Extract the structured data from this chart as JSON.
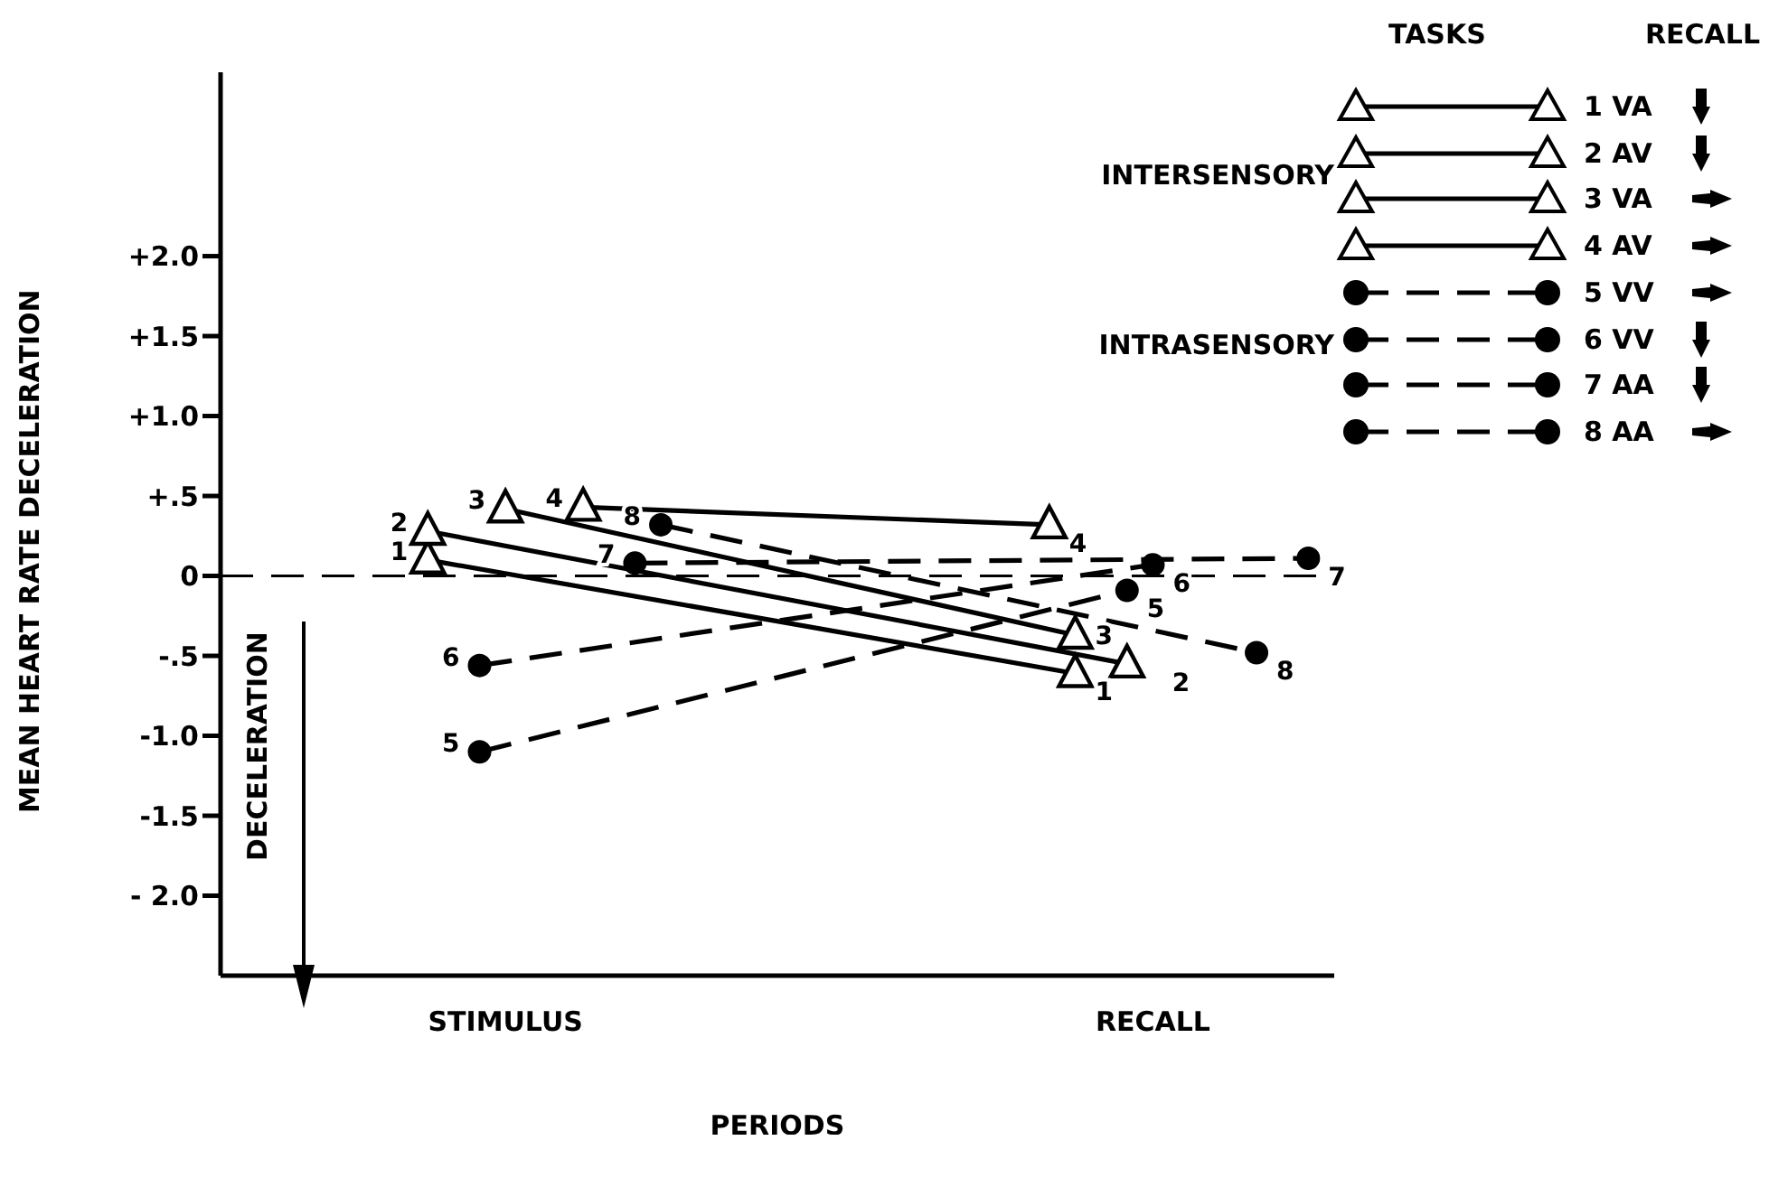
{
  "chart_data": {
    "type": "line",
    "xlabel": "PERIODS",
    "ylabel": "MEAN HEART RATE DECELERATION",
    "legend_title": "TASKS",
    "categories": [
      null,
      null,
      null,
      null,
      null,
      null,
      null,
      null,
      null,
      null,
      null,
      "STIMULUS",
      null,
      null,
      null,
      null,
      null,
      null,
      null,
      null,
      null,
      null,
      null,
      null,
      null,
      null,
      null,
      null,
      null,
      null,
      null,
      null,
      null,
      null,
      null,
      null,
      "RECALL",
      null,
      null,
      null,
      null,
      null,
      null,
      null
    ],
    "ylim": [
      -2.5,
      3.15
    ],
    "yticks": [
      {
        "value": -2,
        "label": "- 2.0"
      },
      {
        "value": -1.5,
        "label": "-1.5"
      },
      {
        "value": -1,
        "label": "-1.0"
      },
      {
        "value": -0.5,
        "label": "-.5"
      },
      {
        "value": 0,
        "label": "0"
      },
      {
        "value": 0.5,
        "label": "+.5"
      },
      {
        "value": 1,
        "label": "+1.0"
      },
      {
        "value": 1.5,
        "label": "+1.5"
      },
      {
        "value": 2,
        "label": "+2.0"
      }
    ],
    "grid": false,
    "legend": "top right",
    "series": [
      {
        "name": "1 VA",
        "color": "#000000",
        "marker": "triangle",
        "line_style": "solid",
        "values": [
          null,
          null,
          null,
          null,
          null,
          null,
          null,
          null,
          0.1,
          null,
          null,
          null,
          null,
          null,
          null,
          null,
          null,
          null,
          null,
          null,
          null,
          null,
          null,
          null,
          null,
          null,
          null,
          null,
          null,
          null,
          null,
          null,
          null,
          -0.61,
          null,
          null,
          null,
          null,
          null,
          null,
          null,
          null,
          null,
          null
        ]
      },
      {
        "name": "2 AV",
        "color": "#000000",
        "marker": "triangle",
        "line_style": "solid",
        "values": [
          null,
          null,
          null,
          null,
          null,
          null,
          null,
          null,
          0.28,
          null,
          null,
          null,
          null,
          null,
          null,
          null,
          null,
          null,
          null,
          null,
          null,
          null,
          null,
          null,
          null,
          null,
          null,
          null,
          null,
          null,
          null,
          null,
          null,
          null,
          null,
          -0.55,
          null,
          null,
          null,
          null,
          null,
          null,
          null,
          null
        ]
      },
      {
        "name": "3 VA",
        "color": "#000000",
        "marker": "triangle",
        "line_style": "solid",
        "values": [
          null,
          null,
          null,
          null,
          null,
          null,
          null,
          null,
          null,
          null,
          null,
          0.42,
          null,
          null,
          null,
          null,
          null,
          null,
          null,
          null,
          null,
          null,
          null,
          null,
          null,
          null,
          null,
          null,
          null,
          null,
          null,
          null,
          null,
          -0.37,
          null,
          null,
          null,
          null,
          null,
          null,
          null,
          null,
          null,
          null
        ]
      },
      {
        "name": "4 AV",
        "color": "#000000",
        "marker": "triangle",
        "line_style": "solid",
        "values": [
          null,
          null,
          null,
          null,
          null,
          null,
          null,
          null,
          null,
          null,
          null,
          null,
          null,
          null,
          0.43,
          null,
          null,
          null,
          null,
          null,
          null,
          null,
          null,
          null,
          null,
          null,
          null,
          null,
          null,
          null,
          null,
          null,
          0.32,
          null,
          null,
          null,
          null,
          null,
          null,
          null,
          null,
          null,
          null,
          null
        ]
      },
      {
        "name": "5 VV",
        "color": "#000000",
        "marker": "circle",
        "line_style": "dashed",
        "values": [
          null,
          null,
          null,
          null,
          null,
          null,
          null,
          null,
          null,
          null,
          -1.1,
          null,
          null,
          null,
          null,
          null,
          null,
          null,
          null,
          null,
          null,
          null,
          null,
          null,
          null,
          null,
          null,
          null,
          null,
          null,
          null,
          null,
          null,
          null,
          null,
          -0.09,
          null,
          null,
          null,
          null,
          null,
          null,
          null,
          null
        ]
      },
      {
        "name": "6 VV",
        "color": "#000000",
        "marker": "circle",
        "line_style": "dashed",
        "values": [
          null,
          null,
          null,
          null,
          null,
          null,
          null,
          null,
          null,
          null,
          -0.56,
          null,
          null,
          null,
          null,
          null,
          null,
          null,
          null,
          null,
          null,
          null,
          null,
          null,
          null,
          null,
          null,
          null,
          null,
          null,
          null,
          null,
          null,
          null,
          null,
          null,
          0.07,
          null,
          null,
          null,
          null,
          null,
          null,
          null
        ]
      },
      {
        "name": "7 AA",
        "color": "#000000",
        "marker": "circle",
        "line_style": "dashed",
        "values": [
          null,
          null,
          null,
          null,
          null,
          null,
          null,
          null,
          null,
          null,
          null,
          null,
          null,
          null,
          null,
          null,
          0.08,
          null,
          null,
          null,
          null,
          null,
          null,
          null,
          null,
          null,
          null,
          null,
          null,
          null,
          null,
          null,
          null,
          null,
          null,
          null,
          null,
          null,
          null,
          null,
          null,
          null,
          0.11,
          null
        ]
      },
      {
        "name": "8 AA",
        "color": "#000000",
        "marker": "circle",
        "line_style": "dashed",
        "values": [
          null,
          null,
          null,
          null,
          null,
          null,
          null,
          null,
          null,
          null,
          null,
          null,
          null,
          null,
          null,
          null,
          null,
          0.32,
          null,
          null,
          null,
          null,
          null,
          null,
          null,
          null,
          null,
          null,
          null,
          null,
          null,
          null,
          null,
          null,
          null,
          null,
          null,
          null,
          null,
          null,
          -0.48,
          null,
          null,
          null
        ]
      }
    ],
    "ref_lines": [
      {
        "axis": "y",
        "value": 0,
        "line_style": "dashed",
        "color": "#000000"
      }
    ],
    "annotations": [
      "RECALL",
      "INTERSENSORY",
      "INTRASENSORY",
      "DECELERATION",
      "1",
      "2",
      "3",
      "4",
      "5",
      "6",
      "7",
      "8",
      "1",
      "2",
      "3",
      "4",
      "5",
      "6",
      "7",
      "8"
    ]
  }
}
